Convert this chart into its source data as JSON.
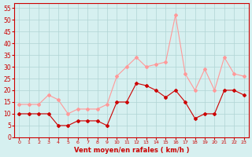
{
  "x": [
    0,
    1,
    2,
    3,
    4,
    5,
    6,
    7,
    8,
    9,
    10,
    11,
    12,
    13,
    14,
    15,
    16,
    17,
    18,
    19,
    20,
    21,
    22,
    23
  ],
  "vent_moyen": [
    10,
    10,
    10,
    10,
    5,
    5,
    7,
    7,
    7,
    5,
    15,
    15,
    23,
    22,
    20,
    17,
    20,
    15,
    8,
    10,
    10,
    20,
    20,
    18
  ],
  "en_rafales": [
    14,
    14,
    14,
    18,
    16,
    10,
    12,
    12,
    12,
    14,
    26,
    30,
    34,
    30,
    31,
    32,
    52,
    27,
    20,
    29,
    20,
    34,
    27,
    26
  ],
  "bg_color": "#d6f0f0",
  "grid_color": "#b0d4d4",
  "line_moyen_color": "#cc0000",
  "line_rafales_color": "#ff9999",
  "xlabel": "Vent moyen/en rafales ( km/h )",
  "ylim": [
    0,
    57
  ],
  "yticks": [
    0,
    5,
    10,
    15,
    20,
    25,
    30,
    35,
    40,
    45,
    50,
    55
  ],
  "tick_color": "#cc0000",
  "axis_color": "#cc0000"
}
